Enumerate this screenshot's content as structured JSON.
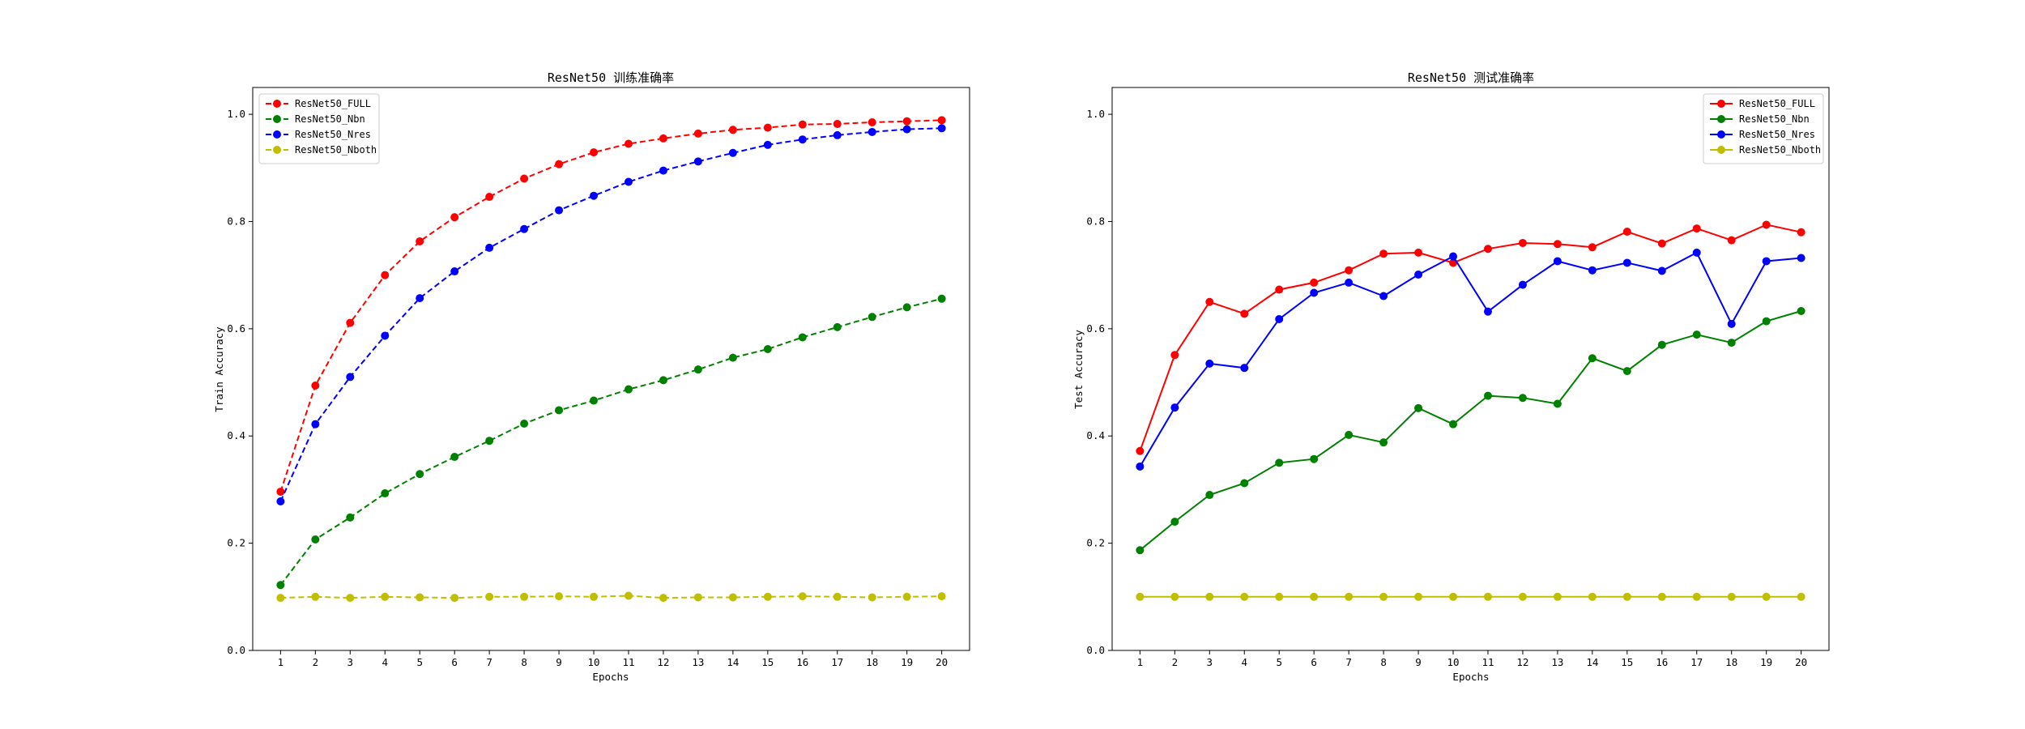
{
  "chart_data": [
    {
      "type": "line",
      "title": "ResNet50 训练准确率",
      "xlabel": "Epochs",
      "ylabel": "Train Accuracy",
      "x": [
        1,
        2,
        3,
        4,
        5,
        6,
        7,
        8,
        9,
        10,
        11,
        12,
        13,
        14,
        15,
        16,
        17,
        18,
        19,
        20
      ],
      "x_ticks": [
        "1",
        "2",
        "3",
        "4",
        "5",
        "6",
        "7",
        "8",
        "9",
        "10",
        "11",
        "12",
        "13",
        "14",
        "15",
        "16",
        "17",
        "18",
        "19",
        "20"
      ],
      "ylim": [
        0,
        1.05
      ],
      "y_ticks": [
        "0.0",
        "0.2",
        "0.4",
        "0.6",
        "0.8",
        "1.0"
      ],
      "y_tick_values": [
        0,
        0.2,
        0.4,
        0.6,
        0.8,
        1.0
      ],
      "line_style": "dashed",
      "legend_position": "top-left",
      "grid": false,
      "series": [
        {
          "name": "ResNet50_FULL",
          "color": "#ff0000",
          "values": [
            0.296,
            0.494,
            0.611,
            0.7,
            0.763,
            0.808,
            0.846,
            0.88,
            0.907,
            0.929,
            0.945,
            0.955,
            0.964,
            0.971,
            0.975,
            0.981,
            0.982,
            0.985,
            0.987,
            0.989
          ]
        },
        {
          "name": "ResNet50_Nbn",
          "color": "#008000",
          "values": [
            0.122,
            0.207,
            0.248,
            0.293,
            0.329,
            0.361,
            0.391,
            0.423,
            0.448,
            0.466,
            0.487,
            0.504,
            0.524,
            0.546,
            0.562,
            0.584,
            0.603,
            0.622,
            0.64,
            0.656
          ]
        },
        {
          "name": "ResNet50_Nres",
          "color": "#0000ff",
          "values": [
            0.278,
            0.422,
            0.51,
            0.587,
            0.657,
            0.707,
            0.751,
            0.786,
            0.821,
            0.848,
            0.874,
            0.895,
            0.912,
            0.928,
            0.943,
            0.953,
            0.961,
            0.967,
            0.972,
            0.974
          ]
        },
        {
          "name": "ResNet50_Nboth",
          "color": "#bfbf00",
          "values": [
            0.098,
            0.1,
            0.098,
            0.1,
            0.099,
            0.098,
            0.1,
            0.1,
            0.101,
            0.1,
            0.102,
            0.098,
            0.099,
            0.099,
            0.1,
            0.101,
            0.1,
            0.099,
            0.1,
            0.101
          ]
        }
      ]
    },
    {
      "type": "line",
      "title": "ResNet50 测试准确率",
      "xlabel": "Epochs",
      "ylabel": "Test Accuracy",
      "x": [
        1,
        2,
        3,
        4,
        5,
        6,
        7,
        8,
        9,
        10,
        11,
        12,
        13,
        14,
        15,
        16,
        17,
        18,
        19,
        20
      ],
      "x_ticks": [
        "1",
        "2",
        "3",
        "4",
        "5",
        "6",
        "7",
        "8",
        "9",
        "10",
        "11",
        "12",
        "13",
        "14",
        "15",
        "16",
        "17",
        "18",
        "19",
        "20"
      ],
      "ylim": [
        0,
        1.05
      ],
      "y_ticks": [
        "0.0",
        "0.2",
        "0.4",
        "0.6",
        "0.8",
        "1.0"
      ],
      "y_tick_values": [
        0,
        0.2,
        0.4,
        0.6,
        0.8,
        1.0
      ],
      "line_style": "solid",
      "legend_position": "top-right",
      "grid": false,
      "series": [
        {
          "name": "ResNet50_FULL",
          "color": "#ff0000",
          "values": [
            0.372,
            0.551,
            0.65,
            0.628,
            0.673,
            0.686,
            0.709,
            0.74,
            0.742,
            0.723,
            0.749,
            0.76,
            0.758,
            0.752,
            0.781,
            0.759,
            0.787,
            0.765,
            0.794,
            0.78
          ]
        },
        {
          "name": "ResNet50_Nbn",
          "color": "#008000",
          "values": [
            0.187,
            0.24,
            0.29,
            0.312,
            0.35,
            0.357,
            0.402,
            0.388,
            0.452,
            0.422,
            0.475,
            0.471,
            0.46,
            0.545,
            0.521,
            0.57,
            0.589,
            0.574,
            0.614,
            0.633
          ]
        },
        {
          "name": "ResNet50_Nres",
          "color": "#0000ff",
          "values": [
            0.343,
            0.453,
            0.535,
            0.527,
            0.618,
            0.667,
            0.686,
            0.661,
            0.701,
            0.735,
            0.632,
            0.682,
            0.726,
            0.709,
            0.723,
            0.708,
            0.742,
            0.609,
            0.726,
            0.732
          ]
        },
        {
          "name": "ResNet50_Nboth",
          "color": "#bfbf00",
          "values": [
            0.1,
            0.1,
            0.1,
            0.1,
            0.1,
            0.1,
            0.1,
            0.1,
            0.1,
            0.1,
            0.1,
            0.1,
            0.1,
            0.1,
            0.1,
            0.1,
            0.1,
            0.1,
            0.1,
            0.1
          ]
        }
      ]
    }
  ]
}
